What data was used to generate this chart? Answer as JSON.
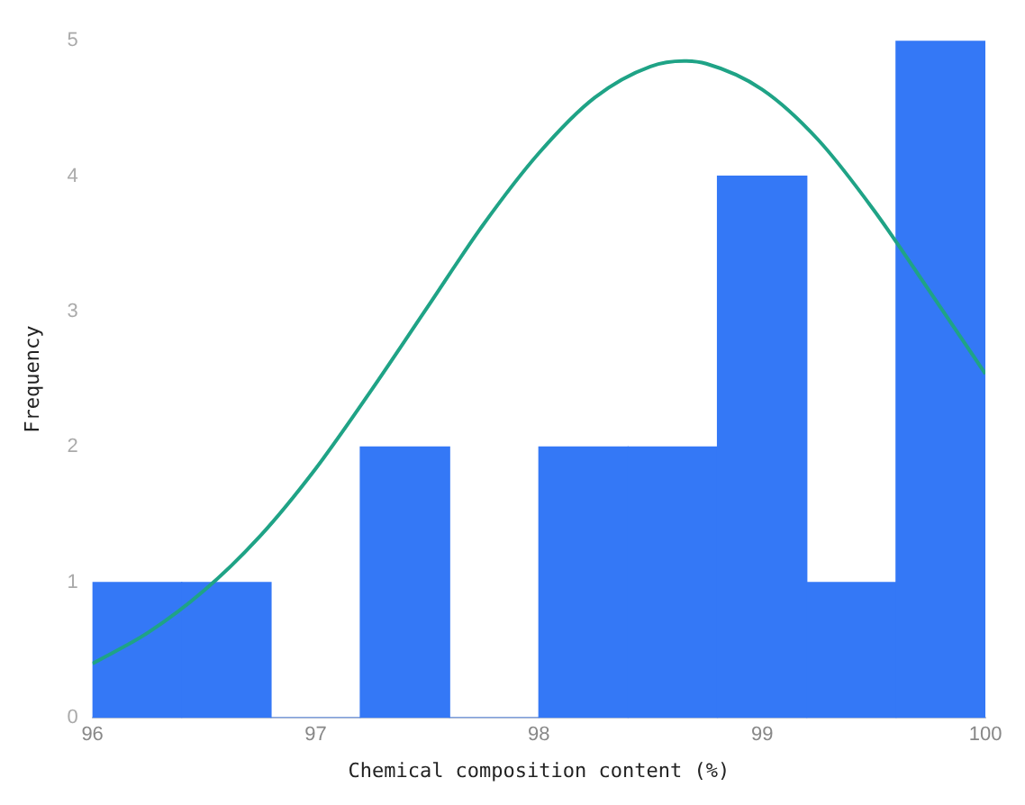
{
  "chart_data": {
    "type": "histogram",
    "xlabel": "Chemical composition content (%)",
    "ylabel": "Frequency",
    "bins": [
      96,
      96.4,
      96.8,
      97.2,
      97.6,
      98,
      98.4,
      98.8,
      99.2,
      99.6,
      100
    ],
    "values": [
      1,
      1,
      0,
      2,
      0,
      2,
      2,
      4,
      1,
      5
    ],
    "color": "#3478f6",
    "series": [
      {
        "type": "line",
        "color": "#1fa386",
        "x": [
          96,
          96.25,
          96.5,
          96.75,
          97,
          97.25,
          97.5,
          97.75,
          98,
          98.25,
          98.5,
          98.65,
          98.75,
          99,
          99.25,
          99.5,
          99.75,
          100
        ],
        "values": [
          0.4,
          0.63,
          0.94,
          1.34,
          1.84,
          2.42,
          3.03,
          3.64,
          4.17,
          4.58,
          4.81,
          4.85,
          4.83,
          4.64,
          4.27,
          3.75,
          3.15,
          2.54
        ]
      }
    ],
    "xlim": [
      96,
      100
    ],
    "xticks": [
      96,
      97,
      98,
      99,
      100
    ],
    "ylim": [
      0,
      5
    ],
    "yticks": [
      0,
      1,
      2,
      3,
      4,
      5
    ],
    "grid": false,
    "legend": false,
    "marker": "none"
  }
}
